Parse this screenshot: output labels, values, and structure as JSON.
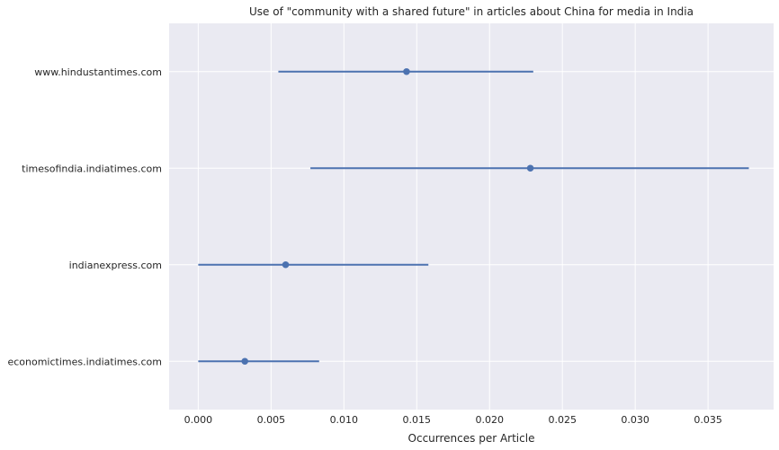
{
  "chart_data": {
    "type": "scatter",
    "title": "Use of \"community with a shared future\" in articles about China for media in India",
    "xlabel": "Occurrences per Article",
    "ylabel": "",
    "xlim": [
      -0.002,
      0.0395
    ],
    "xticks": [
      "0.000",
      "0.005",
      "0.010",
      "0.015",
      "0.020",
      "0.025",
      "0.030",
      "0.035"
    ],
    "xtick_values": [
      0,
      0.005,
      0.01,
      0.015,
      0.02,
      0.025,
      0.03,
      0.035
    ],
    "categories": [
      "www.hindustantimes.com",
      "timesofindia.indiatimes.com",
      "indianexpress.com",
      "economictimes.indiatimes.com"
    ],
    "series": [
      {
        "values": [
          0.0143,
          0.0228,
          0.006,
          0.0032
        ],
        "lower": [
          0.0055,
          0.0077,
          0.0,
          0.0
        ],
        "upper": [
          0.023,
          0.0378,
          0.0158,
          0.0083
        ]
      }
    ],
    "grid": true,
    "colors": {
      "background": "#eaeaf2",
      "grid": "#ffffff",
      "series": "#4c72b0"
    }
  }
}
